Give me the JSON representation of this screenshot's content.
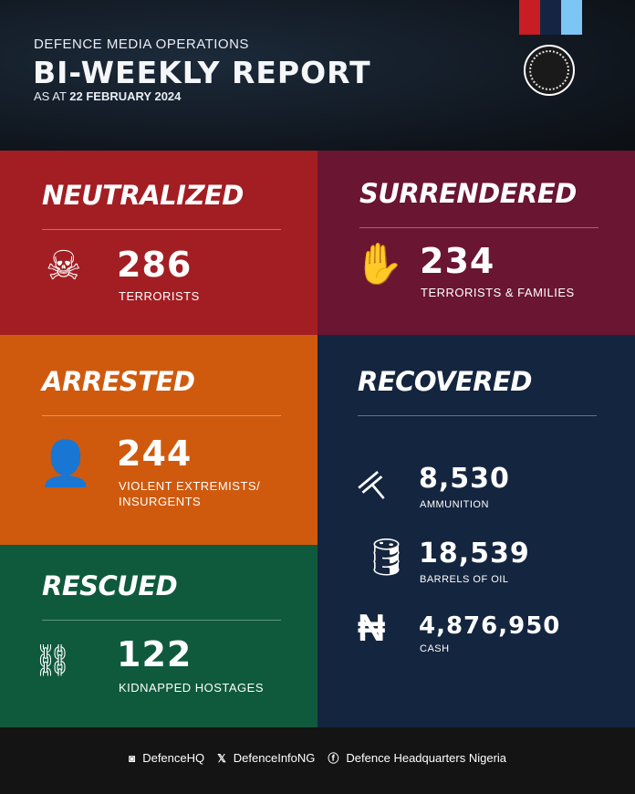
{
  "header": {
    "subtitle": "DEFENCE MEDIA OPERATIONS",
    "title": "BI-WEEKLY REPORT",
    "date_prefix": "AS AT",
    "date": "22 FEBRUARY 2024",
    "stripe_colors": [
      "#c81d24",
      "#142544",
      "#7cc6f5"
    ]
  },
  "neutralized": {
    "heading": "NEUTRALIZED",
    "value": "286",
    "label": "TERRORISTS",
    "icon": "skull-icon",
    "color": "#a31e23"
  },
  "surrendered": {
    "heading": "SURRENDERED",
    "value": "234",
    "label": "TERRORISTS & FAMILIES",
    "icon": "surrender-flag-hand-icon",
    "color": "#6a1531"
  },
  "arrested": {
    "heading": "ARRESTED",
    "value": "244",
    "label_line1": "VIOLENT EXTREMISTS/",
    "label_line2": "INSURGENTS",
    "icon": "masked-insurgent-icon",
    "color": "#cf5a0e"
  },
  "rescued": {
    "heading": "RESCUED",
    "value": "122",
    "label": "KIDNAPPED HOSTAGES",
    "icon": "broken-chain-icon",
    "color": "#0f5a3d"
  },
  "recovered": {
    "heading": "RECOVERED",
    "color": "#14253f",
    "items": [
      {
        "value": "8,530",
        "label": "AMMUNITION",
        "icon": "rifle-icon"
      },
      {
        "value": "18,539",
        "label": "BARRELS OF OIL",
        "icon": "oil-barrel-icon"
      },
      {
        "value": "4,876,950",
        "label": "CASH",
        "icon": "naira-icon"
      }
    ]
  },
  "footer": {
    "instagram": "DefenceHQ",
    "x": "DefenceInfoNG",
    "facebook": "Defence Headquarters Nigeria"
  }
}
